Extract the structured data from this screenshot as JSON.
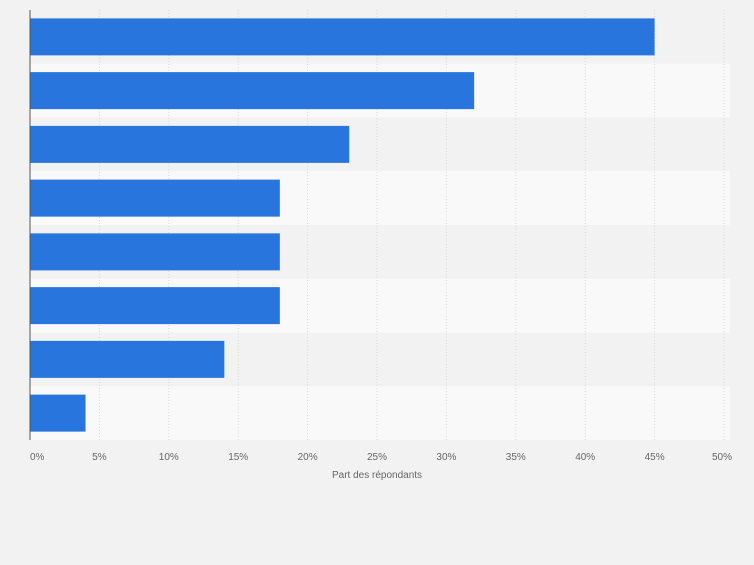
{
  "chart_data": {
    "type": "bar",
    "orientation": "horizontal",
    "categories": [
      "",
      "",
      "",
      "",
      "",
      "",
      "",
      ""
    ],
    "values": [
      45,
      32,
      23,
      18,
      18,
      18,
      14,
      4
    ],
    "title": "",
    "xlabel": "Part des répondants",
    "ylabel": "",
    "xlim": [
      0,
      50
    ],
    "x_ticks": [
      "0%",
      "5%",
      "10%",
      "15%",
      "20%",
      "25%",
      "30%",
      "35%",
      "40%",
      "45%",
      "50%"
    ],
    "grid": "vertical",
    "legend": "none"
  },
  "colors": {
    "bar": "#2876dd",
    "background": "#f2f2f2",
    "band_light": "#f9f9f9",
    "band_dark": "#f2f2f2",
    "grid": "#d9d9d9",
    "axis": "#555555"
  }
}
